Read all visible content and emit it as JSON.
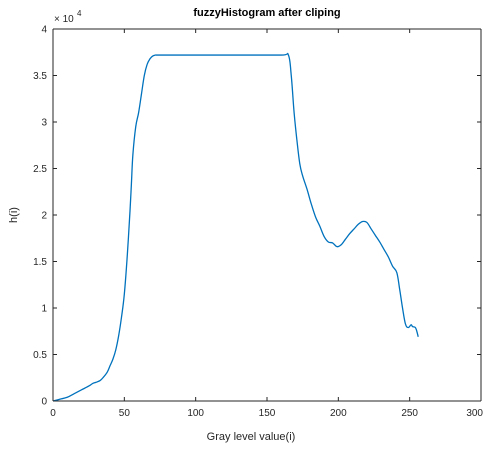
{
  "chart_data": {
    "type": "line",
    "title": "fuzzyHistogram after cliping",
    "xlabel": "Gray level value(i)",
    "ylabel": "h(i)",
    "xlim": [
      0,
      300
    ],
    "ylim": [
      0,
      40000
    ],
    "xticks": [
      0,
      50,
      100,
      150,
      200,
      250,
      300
    ],
    "xtick_labels": [
      "0",
      "50",
      "100",
      "150",
      "200",
      "250",
      "300"
    ],
    "yticks": [
      0,
      5000,
      10000,
      15000,
      20000,
      25000,
      30000,
      35000,
      40000
    ],
    "ytick_labels": [
      "0",
      "0.5",
      "1",
      "1.5",
      "2",
      "2.5",
      "3",
      "3.5",
      "4"
    ],
    "y_exponent_base": "× 10",
    "y_exponent_power": "4",
    "grid": false,
    "line_color": "#0072BD",
    "series": [
      {
        "x": [
          0,
          5,
          10,
          15,
          20,
          25,
          28,
          30,
          33,
          35,
          38,
          40,
          42,
          44,
          46,
          48,
          50,
          52,
          54,
          55,
          56,
          58,
          60,
          62,
          64,
          66,
          68,
          70,
          72,
          73,
          75,
          100,
          130,
          160,
          165,
          167,
          169,
          171,
          173,
          175,
          178,
          181,
          184,
          187,
          190,
          193,
          196,
          199,
          202,
          205,
          208,
          211,
          214,
          217,
          220,
          223,
          226,
          229,
          232,
          235,
          238,
          241,
          243,
          245,
          247,
          249,
          251,
          252,
          254,
          255,
          256
        ],
        "y": [
          0,
          200,
          400,
          800,
          1200,
          1600,
          1900,
          2000,
          2200,
          2500,
          3100,
          3800,
          4500,
          5500,
          7000,
          9000,
          11500,
          15500,
          20500,
          23500,
          26500,
          29500,
          31000,
          33000,
          35000,
          36200,
          36800,
          37100,
          37200,
          37200,
          37200,
          37200,
          37200,
          37200,
          37200,
          35000,
          31000,
          28000,
          25500,
          24200,
          22800,
          21200,
          19800,
          18800,
          17700,
          17100,
          17000,
          16600,
          16800,
          17400,
          18000,
          18500,
          19000,
          19300,
          19200,
          18500,
          17800,
          17100,
          16300,
          15500,
          14500,
          13800,
          12000,
          10000,
          8300,
          7900,
          8200,
          8000,
          7900,
          7500,
          6900
        ]
      }
    ]
  }
}
